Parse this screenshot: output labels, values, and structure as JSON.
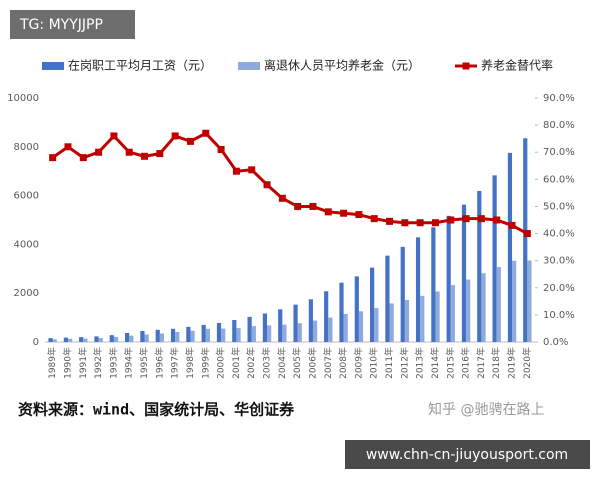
{
  "tag": "TG: MYYJJPP",
  "source": "资料来源：wind、国家统计局、华创证券",
  "watermark": "知乎 @驰骋在路上",
  "banner": "www.chn-cn-jiuyousport.com",
  "chart_data": {
    "type": "bar",
    "categories": [
      "1989年",
      "1990年",
      "1991年",
      "1992年",
      "1993年",
      "1994年",
      "1995年",
      "1996年",
      "1997年",
      "1998年",
      "1999年",
      "2000年",
      "2001年",
      "2002年",
      "2003年",
      "2004年",
      "2005年",
      "2006年",
      "2007年",
      "2008年",
      "2009年",
      "2010年",
      "2011年",
      "2012年",
      "2013年",
      "2014年",
      "2015年",
      "2016年",
      "2017年",
      "2018年",
      "2019年",
      "2020年"
    ],
    "series": [
      {
        "name": "在岗职工平均月工资（元）",
        "color": "#4472c4",
        "values": [
          160,
          180,
          200,
          230,
          280,
          370,
          450,
          500,
          540,
          620,
          700,
          780,
          900,
          1030,
          1170,
          1340,
          1530,
          1750,
          2080,
          2430,
          2690,
          3050,
          3540,
          3900,
          4290,
          4700,
          5170,
          5630,
          6190,
          6830,
          7750,
          8350
        ]
      },
      {
        "name": "离退休人员平均养老金（元）",
        "color": "#8faadc",
        "values": [
          110,
          130,
          140,
          160,
          210,
          260,
          310,
          350,
          410,
          460,
          540,
          550,
          570,
          650,
          680,
          710,
          770,
          880,
          1000,
          1150,
          1260,
          1390,
          1580,
          1720,
          1890,
          2070,
          2330,
          2560,
          2820,
          3070,
          3330,
          3340
        ]
      },
      {
        "name": "养老金替代率",
        "color": "#c00000",
        "type": "line",
        "axis": "y2",
        "values": [
          68,
          72,
          68,
          70,
          76,
          70,
          68.5,
          69.5,
          76,
          74,
          77,
          71,
          63,
          63.5,
          58,
          53,
          50,
          50,
          48,
          47.5,
          47,
          45.5,
          44.5,
          44,
          44,
          44,
          45,
          45.5,
          45.5,
          45,
          43,
          40
        ]
      }
    ],
    "ylim": [
      0,
      10000
    ],
    "yticks": [
      0,
      2000,
      4000,
      6000,
      8000,
      10000
    ],
    "y2lim": [
      0,
      90
    ],
    "y2ticks": [
      {
        "value": 0,
        "label": "0.0%"
      },
      {
        "value": 10,
        "label": "10.0%"
      },
      {
        "value": 20,
        "label": "20.0%"
      },
      {
        "value": 30,
        "label": "30.0%"
      },
      {
        "value": 40,
        "label": "40.0%"
      },
      {
        "value": 50,
        "label": "50.0%"
      },
      {
        "value": 60,
        "label": "60.0%"
      },
      {
        "value": 70,
        "label": "70.0%"
      },
      {
        "value": 80,
        "label": "80.0%"
      },
      {
        "value": 90,
        "label": "90.0%"
      }
    ],
    "grid": false
  }
}
